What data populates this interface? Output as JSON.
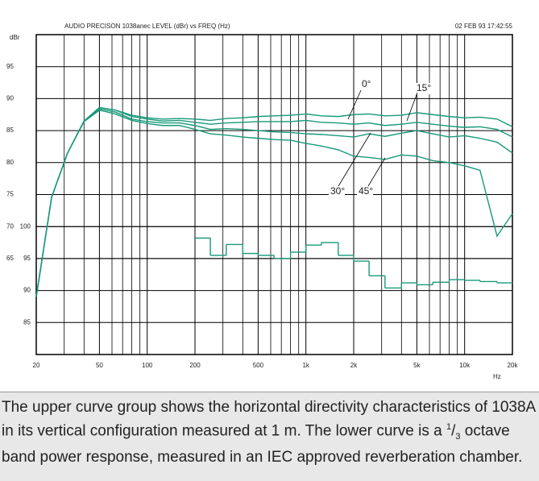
{
  "chart_data": {
    "type": "line",
    "title": "AUDIO PRECISON 1038anec  LEVEL (dBr) vs FREQ (Hz)",
    "subtitle": "02 FEB 93 17:42:55",
    "ylabel": "dBr",
    "xlabel": "Hz",
    "xscale": "log",
    "xlim": [
      20,
      20000
    ],
    "xticks": [
      20,
      50,
      100,
      200,
      500,
      {
        "value": 1000,
        "label": "1k"
      },
      {
        "value": 2000,
        "label": "2k"
      },
      {
        "value": 5000,
        "label": "5k"
      },
      {
        "value": 10000,
        "label": "10k"
      },
      {
        "value": 20000,
        "label": "20k"
      }
    ],
    "xminor": [
      30,
      40,
      60,
      70,
      80,
      90,
      300,
      400,
      600,
      700,
      800,
      900,
      3000,
      4000,
      6000,
      7000,
      8000,
      9000
    ],
    "ylim": [
      50,
      100
    ],
    "yticks": [
      95,
      90,
      85,
      80,
      75,
      70,
      65
    ],
    "y2lim": [
      80,
      130
    ],
    "y2ticks": [
      100,
      95,
      90,
      85
    ],
    "grid": true,
    "x": [
      20,
      25,
      31.5,
      40,
      50,
      63,
      80,
      100,
      125,
      160,
      200,
      250,
      315,
      400,
      500,
      630,
      800,
      1000,
      1250,
      1600,
      2000,
      2500,
      3150,
      4000,
      5000,
      6300,
      8000,
      10000,
      12500,
      16000,
      20000
    ],
    "series": [
      {
        "name": "0°",
        "color": "#17997a",
        "values": [
          59,
          74.6,
          81.5,
          86.5,
          88.6,
          88.2,
          87.4,
          87,
          86.8,
          86.9,
          86.8,
          86.6,
          86.9,
          87,
          87.2,
          87.3,
          87.4,
          87.6,
          87.3,
          87.2,
          87.5,
          87.6,
          87.3,
          87.4,
          87.8,
          87.5,
          87.2,
          87.0,
          87.1,
          86.8,
          85.6
        ]
      },
      {
        "name": "15°",
        "color": "#17997a",
        "values": [
          59,
          74.6,
          81.5,
          86.5,
          88.6,
          88.2,
          87.2,
          86.8,
          86.5,
          86.6,
          86.3,
          86.0,
          86.2,
          86.3,
          86.4,
          86.4,
          86.4,
          86.6,
          86.3,
          86.2,
          86.0,
          86.2,
          85.8,
          86.0,
          86.3,
          86.0,
          85.7,
          85.5,
          85.6,
          85.2,
          84.0
        ]
      },
      {
        "name": "30°",
        "color": "#17997a",
        "values": [
          59,
          74.6,
          81.5,
          86.5,
          88.4,
          87.9,
          86.8,
          86.4,
          86.2,
          86.2,
          85.8,
          85.2,
          85.3,
          85.2,
          85.0,
          84.8,
          84.7,
          84.5,
          84.4,
          84.2,
          84.0,
          84.5,
          84.1,
          84.6,
          85.0,
          84.5,
          84.0,
          84.2,
          83.8,
          83.2,
          81.5
        ]
      },
      {
        "name": "45°",
        "color": "#17997a",
        "values": [
          59,
          74.6,
          81.5,
          86.4,
          88.2,
          87.6,
          86.6,
          86.1,
          85.8,
          85.8,
          85.2,
          84.5,
          84.3,
          84.0,
          83.8,
          83.6,
          83.5,
          83.0,
          82.6,
          82.0,
          81.0,
          80.8,
          80.5,
          81.2,
          81.0,
          80.3,
          80.0,
          79.5,
          78.8,
          68.5,
          72
        ]
      }
    ],
    "power": {
      "axis": "y2",
      "color": "#17997a",
      "x": [
        200,
        250,
        315,
        400,
        500,
        630,
        800,
        1000,
        1250,
        1600,
        2000,
        2500,
        3150,
        4000,
        5000,
        6300,
        8000,
        10000,
        12500,
        16000
      ],
      "values": [
        98.2,
        95.5,
        97.2,
        95.8,
        95.5,
        95,
        96,
        97.1,
        97.5,
        95.5,
        94.6,
        92.3,
        90.4,
        91.2,
        90.9,
        91.3,
        91.7,
        91.6,
        91.4,
        91.2
      ]
    },
    "caption": [
      "The upper curve group shows the horizontal directivity characteristics of 1038A in its vertical configuration measured at 1 m. The lower curve is a ",
      "1",
      "/",
      "3",
      " octave band power response, measured in an IEC approved reverberation chamber."
    ]
  }
}
